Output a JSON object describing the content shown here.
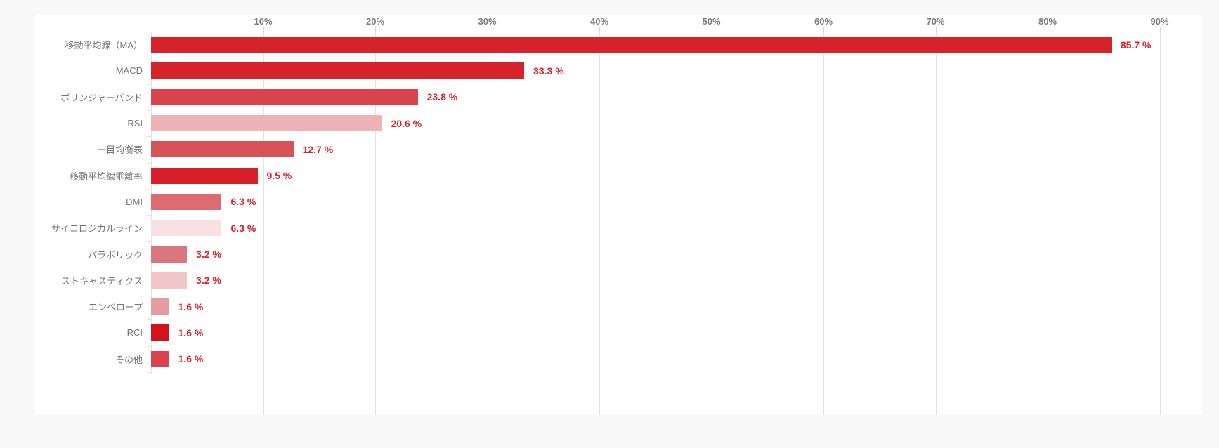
{
  "chart_data": {
    "type": "bar",
    "orientation": "horizontal",
    "title": "",
    "xlabel": "",
    "ylabel": "",
    "categories": [
      "移動平均線（MA）",
      "MACD",
      "ボリンジャーバンド",
      "RSI",
      "一目均衡表",
      "移動平均線乖離率",
      "DMI",
      "サイコロジカルライン",
      "パラボリック",
      "ストキャスティクス",
      "エンベロープ",
      "RCI",
      "その他"
    ],
    "values": [
      85.7,
      33.3,
      23.8,
      20.6,
      12.7,
      9.5,
      6.3,
      6.3,
      3.2,
      3.2,
      1.6,
      1.6,
      1.6
    ],
    "value_labels": [
      "85.7 %",
      "33.3 %",
      "23.8 %",
      "20.6 %",
      "12.7 %",
      "9.5 %",
      "6.3 %",
      "6.3 %",
      "3.2 %",
      "3.2 %",
      "1.6 %",
      "1.6 %",
      "1.6 %"
    ],
    "bar_colors": [
      "#d6232b",
      "#d6232b",
      "#d8434d",
      "#eeb3b7",
      "#d95159",
      "#d5202a",
      "#dd6b72",
      "#f8e1e3",
      "#da767e",
      "#f0c6c9",
      "#e49ba1",
      "#d2131d",
      "#d8434d"
    ],
    "x_ticks": [
      "10%",
      "20%",
      "30%",
      "40%",
      "50%",
      "60%",
      "70%",
      "80%",
      "90%"
    ],
    "x_tick_values": [
      10,
      20,
      30,
      40,
      50,
      60,
      70,
      80,
      90
    ],
    "xlim": [
      0,
      93.7
    ],
    "grid": "vertical-only",
    "legend": "none",
    "value_label_color": "#d7232e",
    "tick_label_color": "#7d7d7d",
    "category_label_color": "#757575"
  },
  "colors": {
    "page_bg": "#f9f9f9",
    "panel_bg": "#ffffff",
    "gridline": "#e3e3e3",
    "y_axis_line": "#dbe4ee"
  }
}
